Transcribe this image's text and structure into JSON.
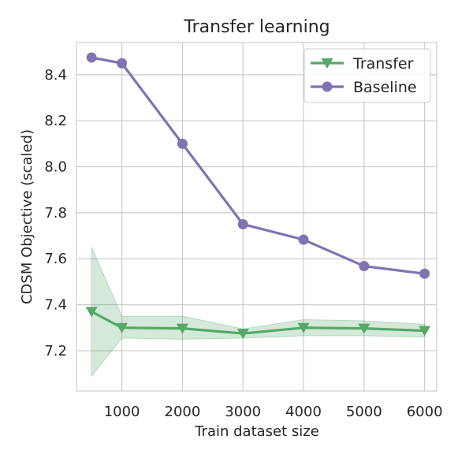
{
  "chart_data": {
    "type": "line",
    "title": "Transfer learning",
    "xlabel": "Train dataset size",
    "ylabel": "CDSM Objective (scaled)",
    "xlim": [
      250,
      6200
    ],
    "ylim": [
      7.025,
      8.54
    ],
    "x_ticks": [
      1000,
      2000,
      3000,
      4000,
      5000,
      6000
    ],
    "y_ticks": [
      7.2,
      7.4,
      7.6,
      7.8,
      8.0,
      8.2,
      8.4
    ],
    "grid": true,
    "legend_position": "upper-right",
    "series": [
      {
        "name": "Transfer",
        "marker": "triangle-down",
        "color": "#55a868",
        "x": [
          500,
          1000,
          2000,
          3000,
          4000,
          5000,
          6000
        ],
        "y": [
          7.37,
          7.3,
          7.297,
          7.275,
          7.3,
          7.297,
          7.287
        ],
        "band_lower": [
          7.09,
          7.255,
          7.25,
          7.255,
          7.265,
          7.265,
          7.26
        ],
        "band_upper": [
          7.65,
          7.35,
          7.35,
          7.295,
          7.335,
          7.33,
          7.315
        ]
      },
      {
        "name": "Baseline",
        "marker": "circle",
        "color": "#8172b2",
        "x": [
          500,
          1000,
          2000,
          3000,
          4000,
          5000,
          6000
        ],
        "y": [
          8.475,
          8.45,
          8.1,
          7.75,
          7.683,
          7.568,
          7.535
        ]
      }
    ]
  }
}
